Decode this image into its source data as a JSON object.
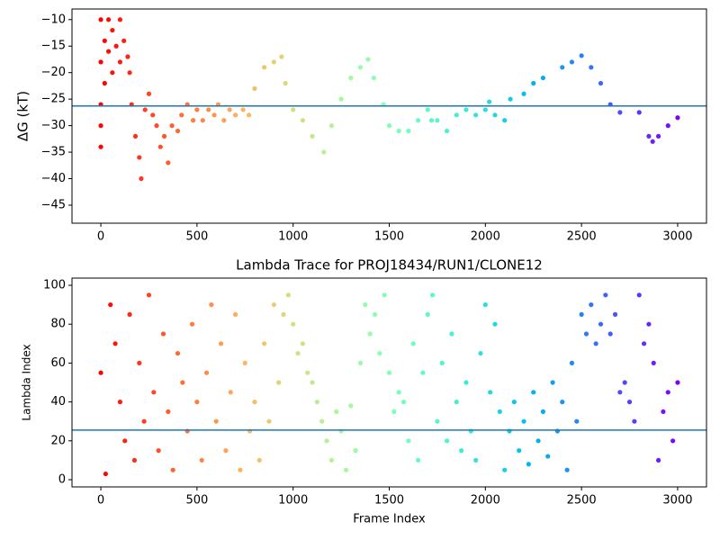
{
  "chart_data": [
    {
      "type": "scatter",
      "ylabel": "ΔG (kT)",
      "colormap": "rainbow_r",
      "hline": -26.3,
      "hline_color": "#1f77b4",
      "xlim": [
        -150,
        3150
      ],
      "ylim": [
        -48.4,
        -8
      ],
      "xticks": [
        0,
        500,
        1000,
        1500,
        2000,
        2500,
        3000
      ],
      "yticks": [
        {
          "value": -45,
          "label": "−45"
        },
        {
          "value": -40,
          "label": "−40"
        },
        {
          "value": -35,
          "label": "−35"
        },
        {
          "value": -30,
          "label": "−30"
        },
        {
          "value": -25,
          "label": "−25"
        },
        {
          "value": -20,
          "label": "−20"
        },
        {
          "value": -15,
          "label": "−15"
        },
        {
          "value": -10,
          "label": "−10"
        }
      ],
      "x": [
        0,
        0,
        0,
        0,
        0,
        20,
        20,
        40,
        40,
        60,
        60,
        80,
        100,
        100,
        120,
        140,
        150,
        160,
        180,
        200,
        210,
        230,
        250,
        270,
        290,
        310,
        330,
        350,
        370,
        400,
        420,
        450,
        480,
        500,
        530,
        560,
        590,
        610,
        640,
        670,
        700,
        740,
        770,
        800,
        850,
        900,
        940,
        960,
        1000,
        1050,
        1100,
        1160,
        1200,
        1250,
        1300,
        1350,
        1390,
        1420,
        1470,
        1500,
        1550,
        1600,
        1650,
        1700,
        1720,
        1750,
        1800,
        1850,
        1900,
        1950,
        2000,
        2020,
        2050,
        2100,
        2130,
        2200,
        2250,
        2300,
        2400,
        2450,
        2500,
        2550,
        2600,
        2650,
        2700,
        2800,
        2850,
        2870,
        2900,
        2950,
        3000
      ],
      "values": [
        -10,
        -18,
        -26,
        -30,
        -34,
        -14,
        -22,
        -10,
        -16,
        -12,
        -20,
        -15,
        -10,
        -18,
        -14,
        -17,
        -20,
        -26,
        -32,
        -36,
        -40,
        -27,
        -24,
        -28,
        -30,
        -34,
        -32,
        -37,
        -30,
        -31,
        -28,
        -26,
        -29,
        -27,
        -29,
        -27,
        -28,
        -26,
        -29,
        -27,
        -28,
        -27,
        -28,
        -23,
        -19,
        -18,
        -17,
        -22,
        -27,
        -29,
        -32,
        -35,
        -30,
        -25,
        -21,
        -19,
        -17.5,
        -21,
        -26,
        -30,
        -31,
        -31,
        -29,
        -27,
        -29,
        -29,
        -31,
        -28,
        -27,
        -28,
        -27,
        -25.5,
        -28,
        -29,
        -25,
        -24,
        -22,
        -21,
        -19,
        -18,
        -16.8,
        -19,
        -22,
        -26,
        -27.5,
        -27.5,
        -32,
        -33,
        -32,
        -30,
        -28.5
      ]
    },
    {
      "type": "scatter",
      "title": "Lambda Trace for PROJ18434/RUN1/CLONE12",
      "xlabel": "Frame Index",
      "ylabel": "Lambda Index",
      "colormap": "rainbow_r",
      "hline": 25.5,
      "hline_color": "#1f77b4",
      "xlim": [
        -150,
        3150
      ],
      "ylim": [
        -3.7,
        103.7
      ],
      "xticks": [
        0,
        500,
        1000,
        1500,
        2000,
        2500,
        3000
      ],
      "yticks": [
        0,
        20,
        40,
        60,
        80,
        100
      ],
      "x": [
        0,
        25,
        50,
        75,
        100,
        125,
        150,
        175,
        200,
        225,
        250,
        275,
        300,
        325,
        350,
        375,
        400,
        425,
        450,
        475,
        500,
        525,
        550,
        575,
        600,
        625,
        650,
        675,
        700,
        725,
        750,
        775,
        800,
        825,
        850,
        875,
        900,
        925,
        950,
        975,
        1000,
        1025,
        1050,
        1075,
        1100,
        1125,
        1150,
        1175,
        1200,
        1225,
        1250,
        1275,
        1300,
        1325,
        1350,
        1375,
        1400,
        1425,
        1450,
        1475,
        1500,
        1525,
        1550,
        1575,
        1600,
        1625,
        1650,
        1675,
        1700,
        1725,
        1750,
        1775,
        1800,
        1825,
        1850,
        1875,
        1900,
        1925,
        1950,
        1975,
        2000,
        2025,
        2050,
        2075,
        2100,
        2125,
        2150,
        2175,
        2200,
        2225,
        2250,
        2275,
        2300,
        2325,
        2350,
        2375,
        2400,
        2425,
        2450,
        2475,
        2500,
        2525,
        2550,
        2575,
        2600,
        2625,
        2650,
        2675,
        2700,
        2725,
        2750,
        2775,
        2800,
        2825,
        2850,
        2875,
        2900,
        2925,
        2950,
        2975,
        3000
      ],
      "values": [
        55,
        3,
        90,
        70,
        40,
        20,
        85,
        10,
        60,
        30,
        95,
        45,
        15,
        75,
        35,
        5,
        65,
        50,
        25,
        80,
        40,
        10,
        55,
        90,
        30,
        70,
        15,
        45,
        85,
        5,
        60,
        25,
        40,
        10,
        70,
        30,
        90,
        50,
        85,
        95,
        80,
        65,
        70,
        55,
        50,
        40,
        30,
        20,
        10,
        35,
        25,
        5,
        38,
        15,
        60,
        90,
        75,
        85,
        65,
        95,
        55,
        35,
        45,
        40,
        20,
        70,
        10,
        55,
        85,
        95,
        30,
        60,
        20,
        75,
        40,
        15,
        50,
        25,
        10,
        65,
        90,
        45,
        80,
        35,
        5,
        25,
        40,
        15,
        30,
        8,
        45,
        20,
        35,
        12,
        50,
        25,
        40,
        5,
        60,
        30,
        85,
        75,
        90,
        70,
        80,
        95,
        75,
        85,
        45,
        50,
        40,
        30,
        95,
        70,
        80,
        60,
        10,
        35,
        45,
        20,
        50
      ]
    }
  ]
}
